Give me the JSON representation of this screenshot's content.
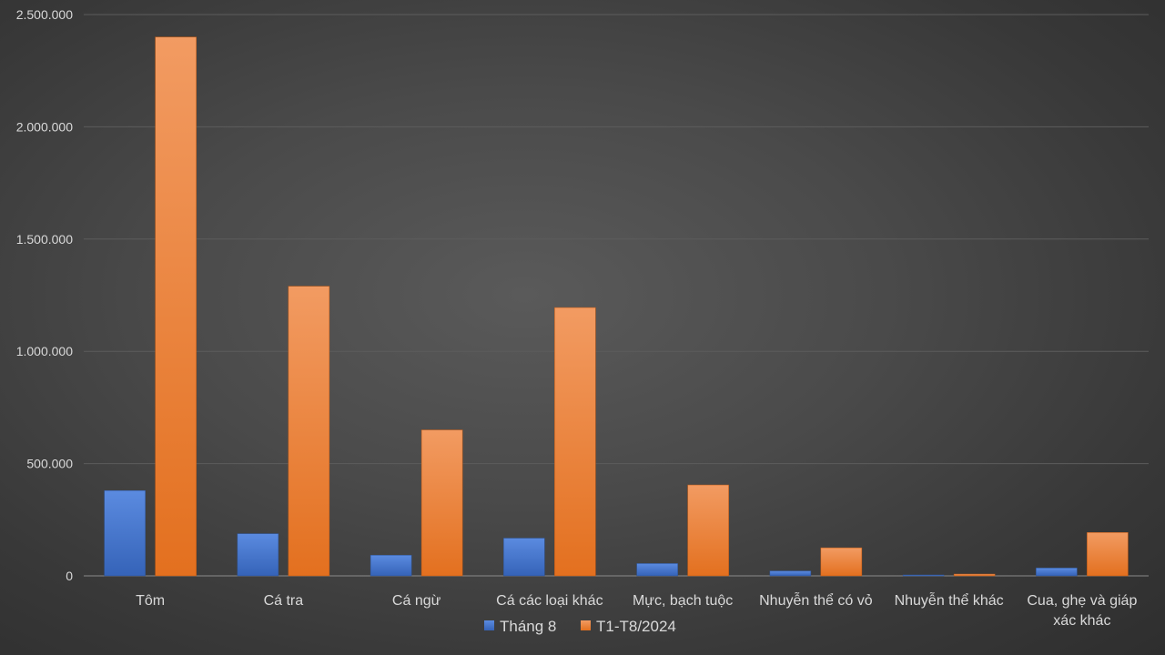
{
  "chart_data": {
    "type": "bar",
    "title": "",
    "xlabel": "",
    "ylabel": "",
    "categories": [
      "Tôm",
      "Cá tra",
      "Cá ngừ",
      "Cá các loại khác",
      "Mực, bạch tuộc",
      "Nhuyễn thể có vỏ",
      "Nhuyễn thể khác",
      "Cua, ghẹ và giáp xác khác"
    ],
    "series": [
      {
        "name": "Tháng 8",
        "color": "#4472c4",
        "values": [
          380000,
          188000,
          92000,
          168000,
          55000,
          22000,
          4000,
          35000
        ]
      },
      {
        "name": "T1-T8/2024",
        "color": "#ed7d31",
        "values": [
          2400000,
          1290000,
          650000,
          1195000,
          405000,
          125000,
          8000,
          193000
        ]
      }
    ],
    "ylim": [
      0,
      2500000
    ],
    "yticks": [
      {
        "value": 0,
        "label": "0"
      },
      {
        "value": 500000,
        "label": "500.000"
      },
      {
        "value": 1000000,
        "label": "1.000.000"
      },
      {
        "value": 1500000,
        "label": "1.500.000"
      },
      {
        "value": 2000000,
        "label": "2.000.000"
      },
      {
        "value": 2500000,
        "label": "2.500.000"
      }
    ],
    "grid": true,
    "legend_position": "bottom"
  }
}
